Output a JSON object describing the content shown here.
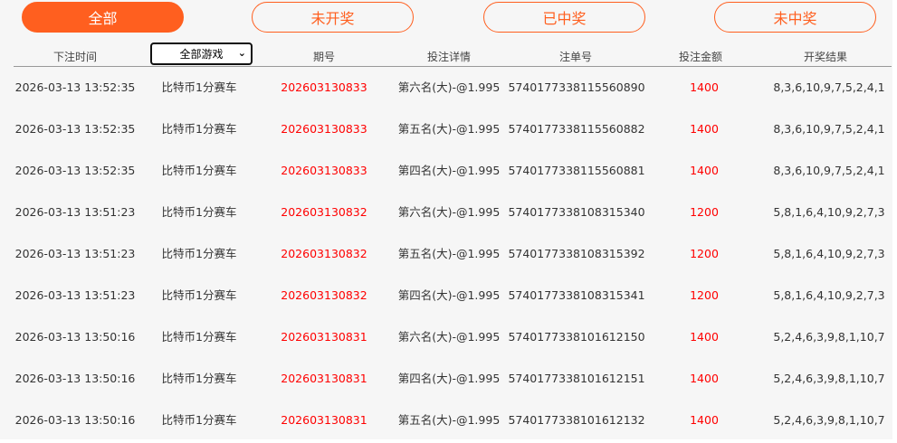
{
  "tabs": [
    {
      "label": "全部",
      "active": true
    },
    {
      "label": "未开奖",
      "active": false
    },
    {
      "label": "已中奖",
      "active": false
    },
    {
      "label": "未中奖",
      "active": false
    }
  ],
  "colors": {
    "accent": "#ff5f1f",
    "highlight": "#ff0000"
  },
  "headers": {
    "time": "下注时间",
    "game_select": "全部游戏",
    "period": "期号",
    "detail": "投注详情",
    "order": "注单号",
    "amount": "投注金额",
    "result": "开奖结果"
  },
  "rows": [
    {
      "time": "2026-03-13 13:52:35",
      "game": "比特币1分赛车",
      "period": "202603130833",
      "detail": "第六名(大)-@1.995",
      "order": "5740177338115560890",
      "amount": "1400",
      "result": "8,3,6,10,9,7,5,2,4,1"
    },
    {
      "time": "2026-03-13 13:52:35",
      "game": "比特币1分赛车",
      "period": "202603130833",
      "detail": "第五名(大)-@1.995",
      "order": "5740177338115560882",
      "amount": "1400",
      "result": "8,3,6,10,9,7,5,2,4,1"
    },
    {
      "time": "2026-03-13 13:52:35",
      "game": "比特币1分赛车",
      "period": "202603130833",
      "detail": "第四名(大)-@1.995",
      "order": "5740177338115560881",
      "amount": "1400",
      "result": "8,3,6,10,9,7,5,2,4,1"
    },
    {
      "time": "2026-03-13 13:51:23",
      "game": "比特币1分赛车",
      "period": "202603130832",
      "detail": "第六名(大)-@1.995",
      "order": "5740177338108315340",
      "amount": "1200",
      "result": "5,8,1,6,4,10,9,2,7,3"
    },
    {
      "time": "2026-03-13 13:51:23",
      "game": "比特币1分赛车",
      "period": "202603130832",
      "detail": "第五名(大)-@1.995",
      "order": "5740177338108315392",
      "amount": "1200",
      "result": "5,8,1,6,4,10,9,2,7,3"
    },
    {
      "time": "2026-03-13 13:51:23",
      "game": "比特币1分赛车",
      "period": "202603130832",
      "detail": "第四名(大)-@1.995",
      "order": "5740177338108315341",
      "amount": "1200",
      "result": "5,8,1,6,4,10,9,2,7,3"
    },
    {
      "time": "2026-03-13 13:50:16",
      "game": "比特币1分赛车",
      "period": "202603130831",
      "detail": "第六名(大)-@1.995",
      "order": "5740177338101612150",
      "amount": "1400",
      "result": "5,2,4,6,3,9,8,1,10,7"
    },
    {
      "time": "2026-03-13 13:50:16",
      "game": "比特币1分赛车",
      "period": "202603130831",
      "detail": "第四名(大)-@1.995",
      "order": "5740177338101612151",
      "amount": "1400",
      "result": "5,2,4,6,3,9,8,1,10,7"
    },
    {
      "time": "2026-03-13 13:50:16",
      "game": "比特币1分赛车",
      "period": "202603130831",
      "detail": "第五名(大)-@1.995",
      "order": "5740177338101612132",
      "amount": "1400",
      "result": "5,2,4,6,3,9,8,1,10,7"
    }
  ]
}
